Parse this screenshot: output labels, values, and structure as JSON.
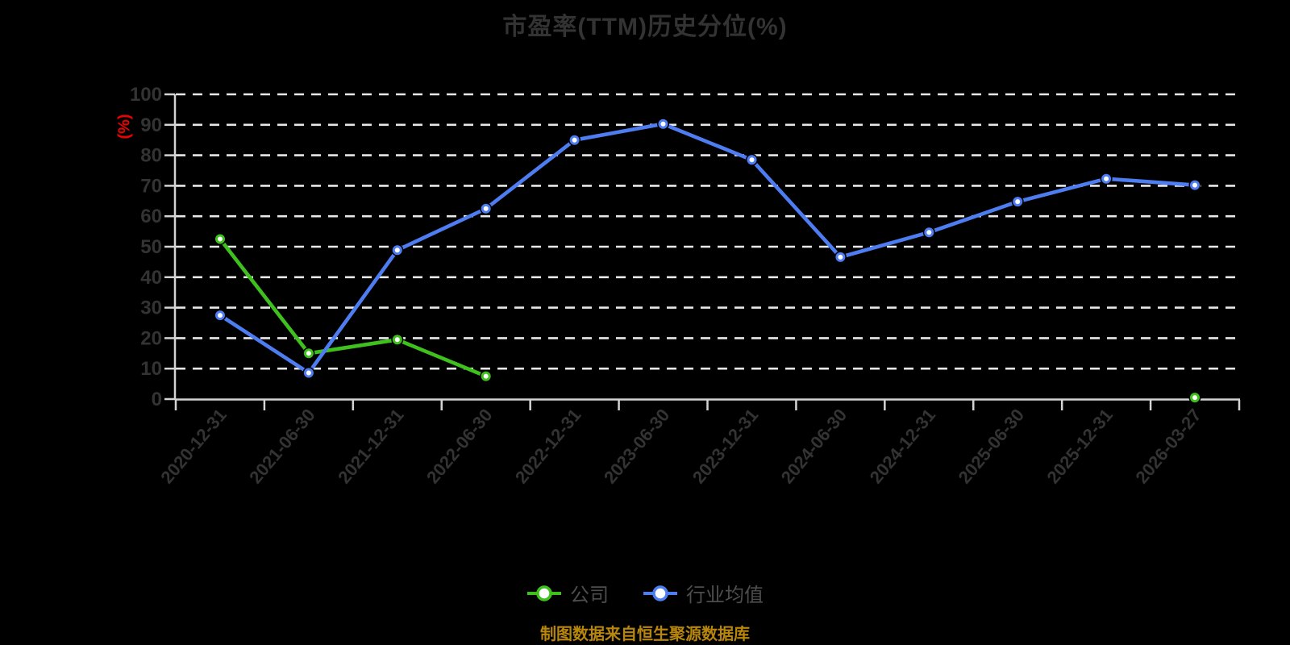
{
  "title": "市盈率(TTM)历史分位(%)",
  "footer": "制图数据来自恒生聚源数据库",
  "colors": {
    "background": "#000000",
    "title_text": "#333333",
    "axis_label": "#333333",
    "y_unit_label": "#ee0000",
    "grid_line": "#e8e8e8",
    "axis_line": "#d4d4d4",
    "legend_text": "#4d4d4d",
    "footer_text": "#b8860b",
    "company_series": "#3fc11d",
    "industry_series": "#4e7df2",
    "marker_fill": "#ffffff"
  },
  "chart_data": {
    "type": "line",
    "title": "市盈率(TTM)历史分位(%)",
    "ylabel": "(%)",
    "xlabel": "",
    "ylim": [
      0,
      100
    ],
    "ytick_step": 10,
    "grid": "horizontal-dashed",
    "legend_position": "bottom-center",
    "x_label_rotation": -50,
    "categories": [
      "2020-12-31",
      "2021-06-30",
      "2021-12-31",
      "2022-06-30",
      "2022-12-31",
      "2023-06-30",
      "2023-12-31",
      "2024-06-30",
      "2024-12-31",
      "2025-06-30",
      "2025-12-31",
      "2026-03-27"
    ],
    "series": [
      {
        "name": "公司",
        "color": "#3fc11d",
        "values": [
          52.5,
          15,
          19.5,
          7.5,
          null,
          null,
          null,
          null,
          null,
          null,
          null,
          0.5
        ]
      },
      {
        "name": "行业均值",
        "color": "#4e7df2",
        "values": [
          27.5,
          8.6,
          48.9,
          62.5,
          85,
          90.3,
          78.5,
          46.6,
          54.7,
          64.8,
          72.3,
          70.2
        ]
      }
    ]
  }
}
